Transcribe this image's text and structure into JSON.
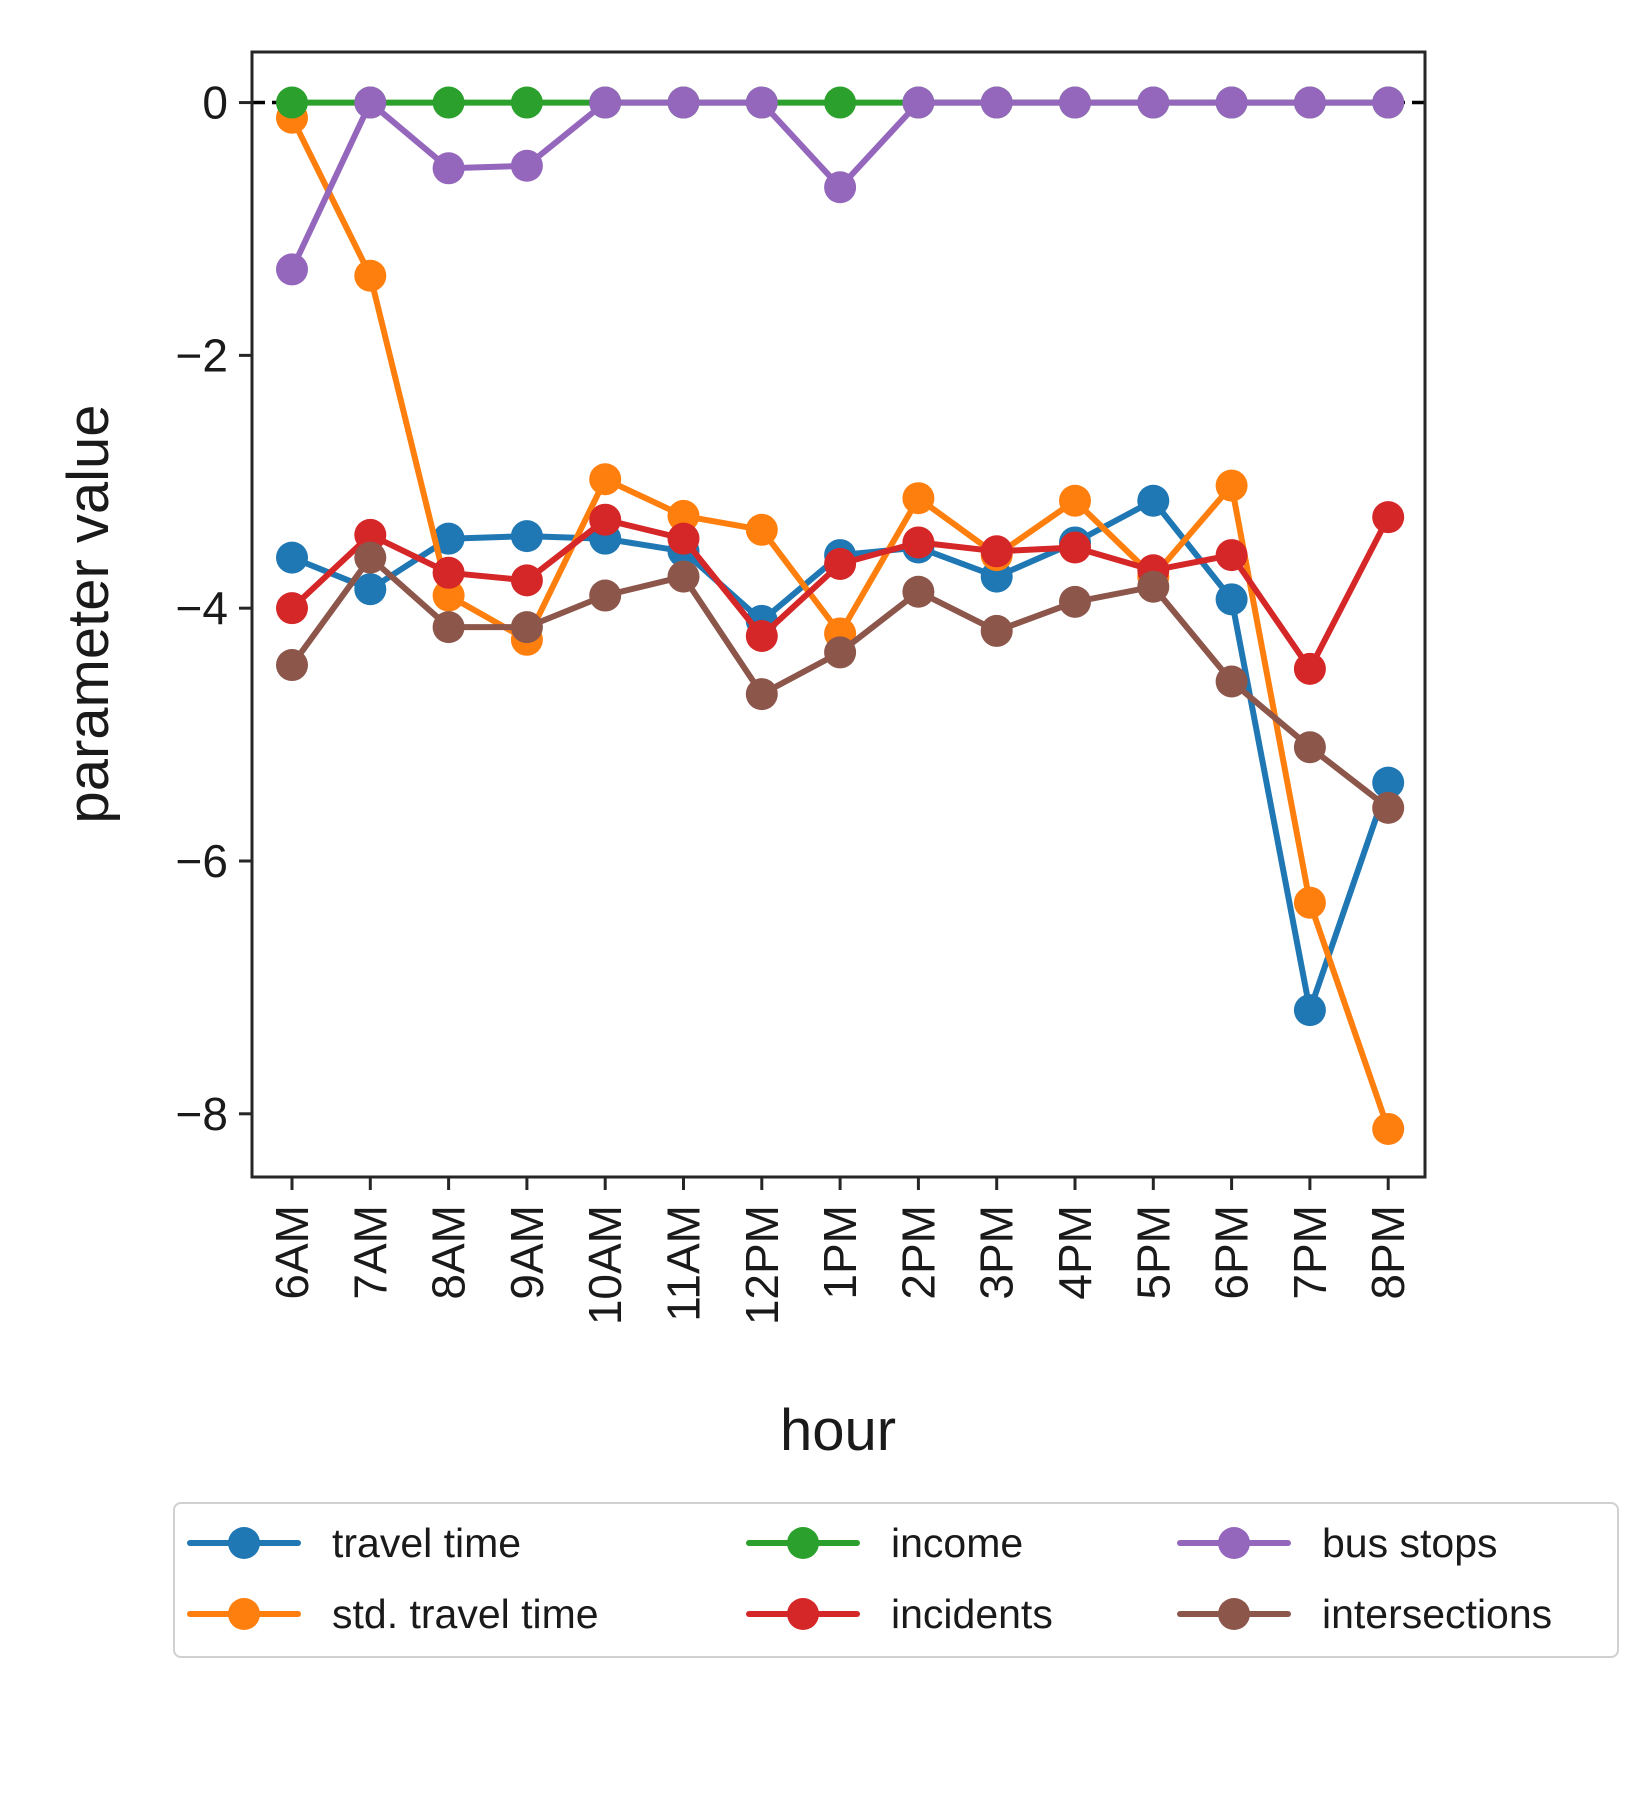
{
  "chart_data": {
    "type": "line",
    "title": "",
    "xlabel": "hour",
    "ylabel": "parameter value",
    "categories": [
      "6AM",
      "7AM",
      "8AM",
      "9AM",
      "10AM",
      "11AM",
      "12PM",
      "1PM",
      "2PM",
      "3PM",
      "4PM",
      "5PM",
      "6PM",
      "7PM",
      "8PM"
    ],
    "ylim": [
      -8.5,
      0.4
    ],
    "yticks": [
      0,
      -2,
      -4,
      -6,
      -8
    ],
    "ytick_labels": [
      "0",
      "−2",
      "−4",
      "−6",
      "−8"
    ],
    "reference_line": {
      "y": 0,
      "style": "dashed",
      "color": "#000000"
    },
    "grid": false,
    "legend_position": "bottom-center",
    "legend_columns": 3,
    "series": [
      {
        "name": "travel time",
        "color": "#1f77b4",
        "values": [
          -3.6,
          -3.85,
          -3.45,
          -3.43,
          -3.45,
          -3.55,
          -4.1,
          -3.58,
          -3.52,
          -3.75,
          -3.48,
          -3.15,
          -3.93,
          -7.18,
          -5.38
        ]
      },
      {
        "name": "std. travel time",
        "color": "#ff7f0e",
        "values": [
          -0.12,
          -1.37,
          -3.9,
          -4.25,
          -2.98,
          -3.27,
          -3.38,
          -4.2,
          -3.13,
          -3.58,
          -3.15,
          -3.75,
          -3.03,
          -6.33,
          -8.12
        ]
      },
      {
        "name": "income",
        "color": "#2ca02c",
        "values": [
          0,
          0,
          0,
          0,
          0,
          0,
          0,
          0,
          0,
          0,
          0,
          0,
          0,
          0,
          0
        ]
      },
      {
        "name": "incidents",
        "color": "#d62728",
        "values": [
          -4.0,
          -3.42,
          -3.72,
          -3.78,
          -3.3,
          -3.45,
          -4.22,
          -3.65,
          -3.48,
          -3.55,
          -3.52,
          -3.7,
          -3.58,
          -4.48,
          -3.28
        ]
      },
      {
        "name": "bus stops",
        "color": "#9467bd",
        "values": [
          -1.32,
          0,
          -0.52,
          -0.5,
          0,
          0,
          0,
          -0.67,
          0,
          0,
          0,
          0,
          0,
          0,
          0
        ]
      },
      {
        "name": "intersections",
        "color": "#8c564b",
        "values": [
          -4.45,
          -3.6,
          -4.15,
          -4.15,
          -3.9,
          -3.75,
          -4.68,
          -4.35,
          -3.87,
          -4.18,
          -3.95,
          -3.83,
          -4.58,
          -5.1,
          -5.58
        ]
      }
    ]
  }
}
